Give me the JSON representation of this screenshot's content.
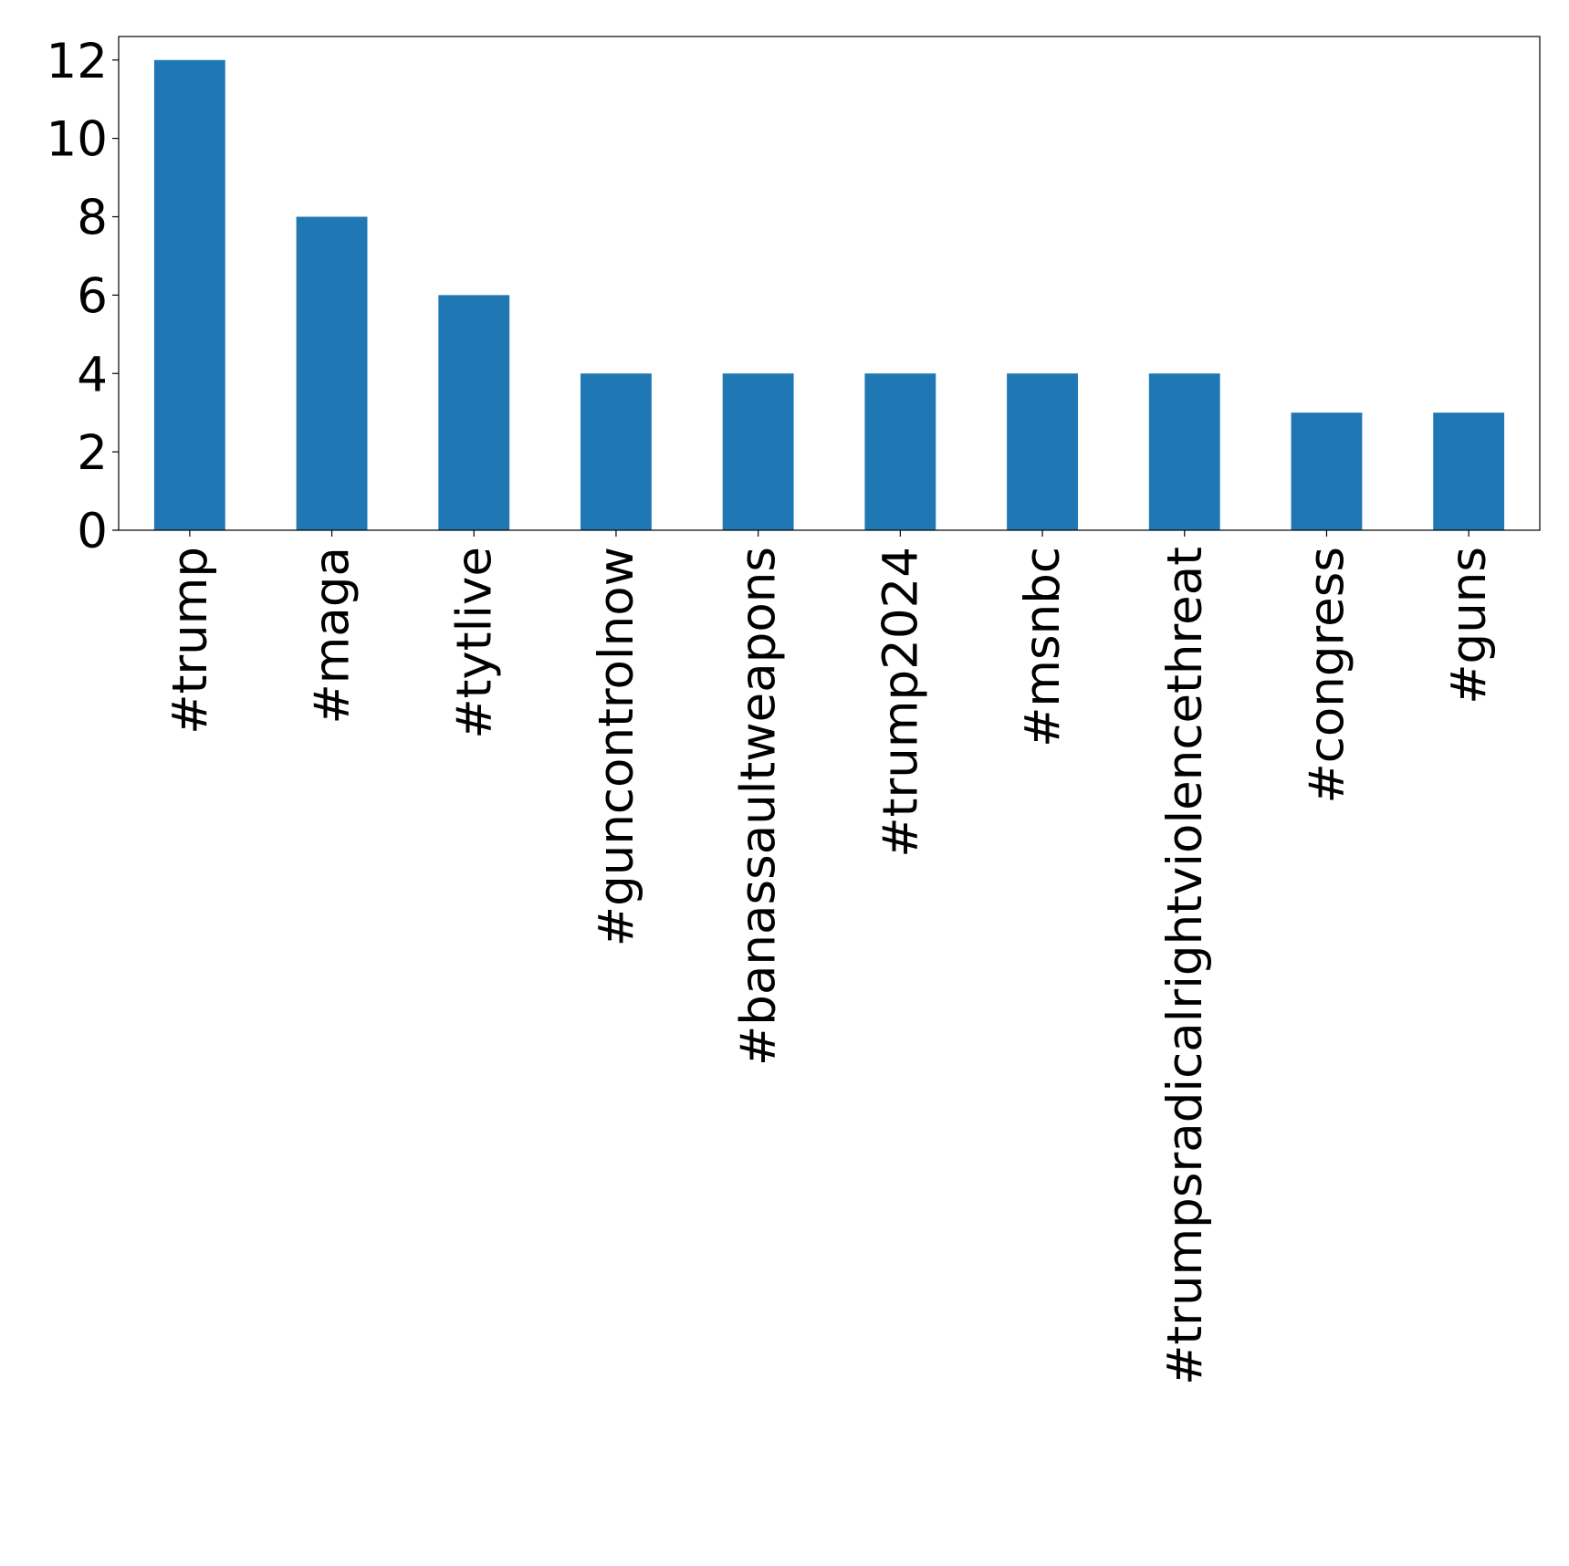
{
  "chart_data": {
    "type": "bar",
    "title": "",
    "xlabel": "",
    "ylabel": "",
    "categories": [
      "#trump",
      "#maga",
      "#tytlive",
      "#guncontrolnow",
      "#banassaultweapons",
      "#trump2024",
      "#msnbc",
      "#trumpsradicalrightviolencethreat",
      "#congress",
      "#guns"
    ],
    "values": [
      12,
      8,
      6,
      4,
      4,
      4,
      4,
      4,
      3,
      3
    ],
    "ylim": [
      0,
      12.6
    ],
    "yticks": [
      0,
      2,
      4,
      6,
      8,
      10,
      12
    ],
    "bar_color": "#1f77b4",
    "grid": false,
    "legend": "none"
  }
}
